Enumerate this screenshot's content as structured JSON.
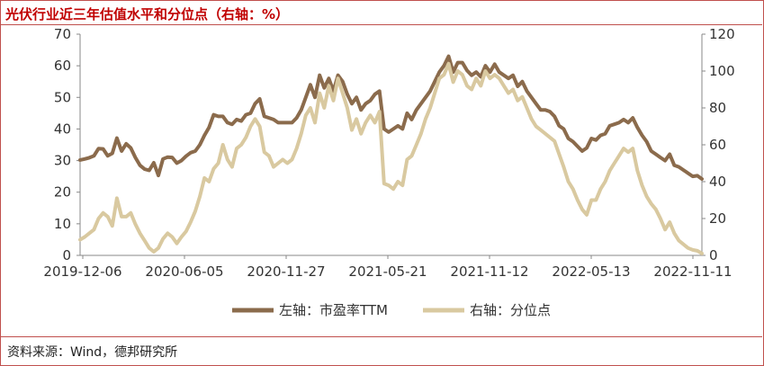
{
  "header": {
    "title": "光伏行业近三年估值水平和分位点（右轴：%）"
  },
  "footer": {
    "source": "资料来源：Wind，德邦研究所"
  },
  "colors": {
    "left_series": "#8b6b4c",
    "right_series": "#d9c9a0",
    "title": "#c00000",
    "border": "#c0504d"
  },
  "chart_data": {
    "type": "line",
    "title": "光伏行业近三年估值水平和分位点（右轴：%）",
    "x_tick_labels": [
      "2019-12-06",
      "2020-06-05",
      "2020-11-27",
      "2021-05-21",
      "2021-11-12",
      "2022-05-13",
      "2022-11-11"
    ],
    "y_left": {
      "ylim": [
        0,
        70
      ],
      "ticks": [
        "0",
        "10",
        "20",
        "30",
        "40",
        "50",
        "60",
        "70"
      ]
    },
    "y_right": {
      "ylim": [
        0,
        120
      ],
      "ticks": [
        "0",
        "20",
        "40",
        "60",
        "80",
        "100",
        "120"
      ]
    },
    "legend_position": "bottom",
    "grid": false,
    "series": [
      {
        "name": "左轴：市盈率TTM",
        "axis": "left",
        "values": [
          30.2,
          30.5,
          30.9,
          31.5,
          33.8,
          33.7,
          31.5,
          32.3,
          37.1,
          33.0,
          35.3,
          34.0,
          31.0,
          28.5,
          27.3,
          26.9,
          29.3,
          25.3,
          30.5,
          31.1,
          31.0,
          29.2,
          30.0,
          31.4,
          32.5,
          33.0,
          35.0,
          38.0,
          40.5,
          44.5,
          44.0,
          44.0,
          42.0,
          41.5,
          43.0,
          42.5,
          44.5,
          45.0,
          48.0,
          49.5,
          44.0,
          43.5,
          43.0,
          42.0,
          42.0,
          42.0,
          42.0,
          43.5,
          46.0,
          50.0,
          54.0,
          50.0,
          57.0,
          53.0,
          56.0,
          52.0,
          57.0,
          55.0,
          51.0,
          48.0,
          50.0,
          46.0,
          48.0,
          49.0,
          51.0,
          52.0,
          40.0,
          39.0,
          40.0,
          41.0,
          40.0,
          45.0,
          43.0,
          46.0,
          48.0,
          50.0,
          52.0,
          55.0,
          58.0,
          60.0,
          63.0,
          58.0,
          61.0,
          61.0,
          58.5,
          57.0,
          58.0,
          56.5,
          60.0,
          58.0,
          60.5,
          58.0,
          57.0,
          56.0,
          57.0,
          53.5,
          55.0,
          52.0,
          50.0,
          48.0,
          46.0,
          46.0,
          45.5,
          44.0,
          41.0,
          40.0,
          37.0,
          36.0,
          34.5,
          33.0,
          34.0,
          37.0,
          36.5,
          38.0,
          38.5,
          41.0,
          41.5,
          42.0,
          43.0,
          42.0,
          43.5,
          40.5,
          38.0,
          36.0,
          33.0,
          32.0,
          31.0,
          30.0,
          32.0,
          28.5,
          28.0,
          27.0,
          26.0,
          25.0,
          25.2,
          24.2
        ]
      },
      {
        "name": "右轴：分位点",
        "axis": "right",
        "values": [
          8.5,
          10.0,
          12.0,
          14.0,
          20.0,
          23.0,
          21.0,
          16.0,
          31.0,
          21.0,
          21.0,
          23.0,
          17.0,
          12.0,
          8.0,
          4.0,
          2.0,
          4.0,
          9.0,
          12.0,
          10.0,
          6.5,
          10.0,
          13.0,
          18.0,
          24.0,
          32.0,
          42.0,
          40.0,
          47.0,
          50.0,
          60.0,
          52.0,
          48.0,
          58.0,
          60.0,
          64.0,
          70.0,
          74.0,
          70.0,
          56.0,
          54.0,
          48.0,
          50.0,
          52.0,
          50.0,
          52.0,
          58.0,
          66.0,
          76.0,
          80.0,
          72.0,
          88.0,
          80.0,
          92.0,
          84.0,
          96.0,
          88.0,
          80.0,
          68.0,
          74.0,
          66.0,
          72.0,
          76.0,
          72.0,
          78.0,
          39.0,
          38.0,
          36.0,
          40.0,
          38.0,
          52.0,
          54.0,
          60.0,
          66.0,
          74.0,
          80.0,
          88.0,
          96.0,
          98.0,
          104.0,
          94.0,
          100.0,
          98.0,
          92.0,
          90.0,
          96.0,
          92.0,
          100.0,
          96.0,
          98.0,
          96.0,
          92.0,
          88.0,
          90.0,
          84.0,
          86.0,
          80.0,
          74.0,
          70.0,
          68.0,
          66.0,
          64.0,
          62.0,
          55.0,
          48.0,
          40.0,
          36.0,
          30.0,
          25.0,
          22.0,
          30.0,
          30.0,
          36.0,
          40.0,
          46.0,
          50.0,
          54.0,
          58.0,
          56.0,
          58.0,
          46.0,
          38.0,
          32.0,
          28.0,
          25.0,
          20.0,
          14.0,
          18.0,
          12.0,
          8.0,
          6.0,
          4.0,
          3.0,
          2.5,
          1.0
        ]
      }
    ]
  }
}
